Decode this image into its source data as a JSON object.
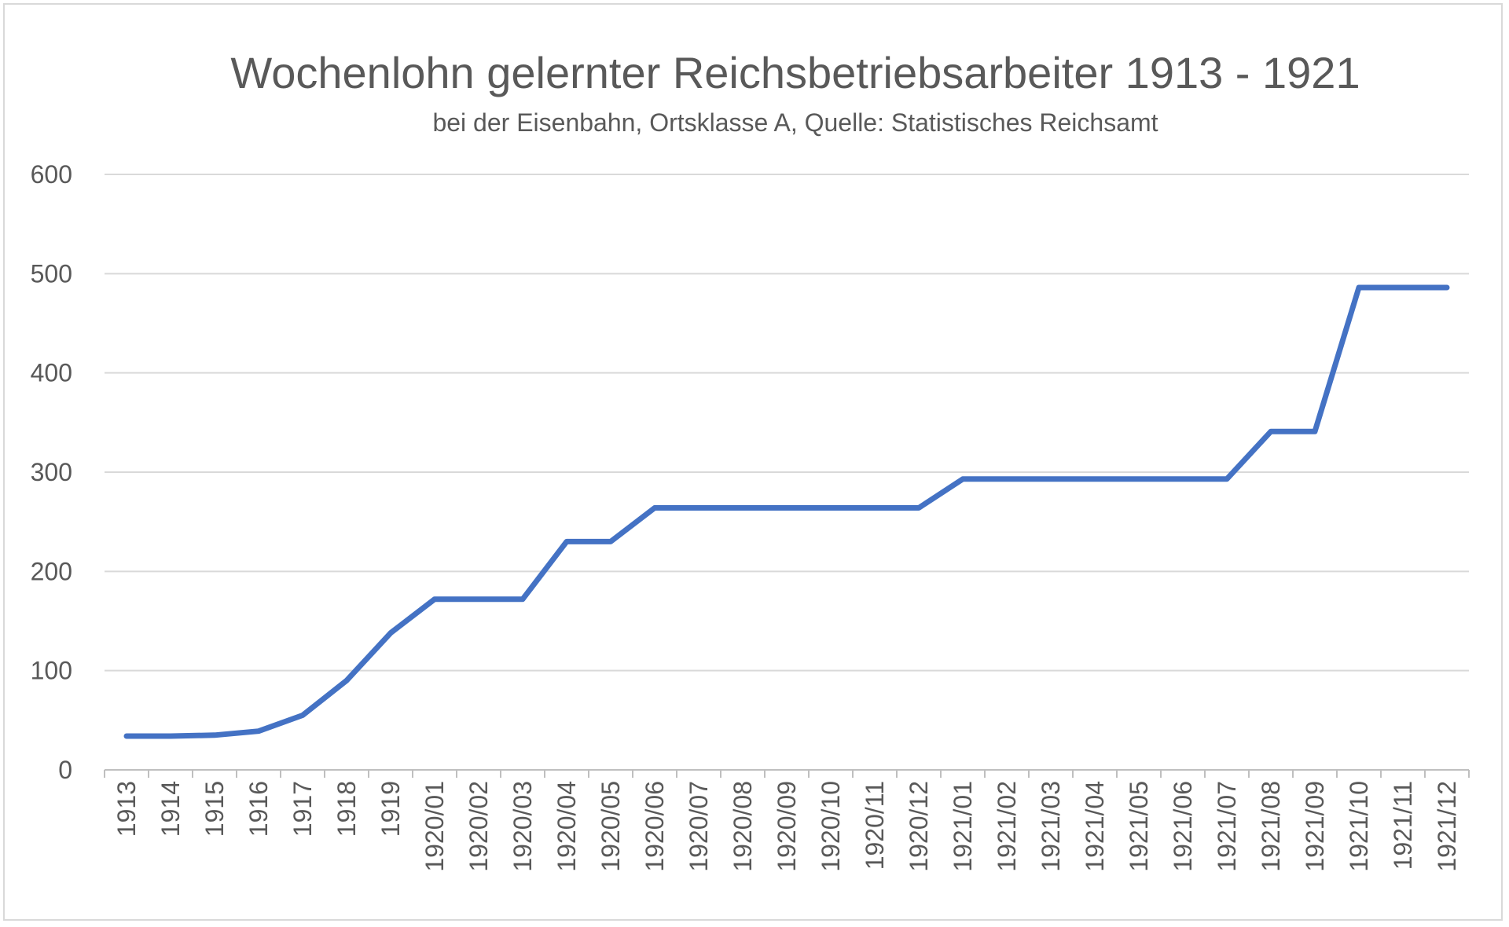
{
  "chart_data": {
    "type": "line",
    "title": "Wochenlohn gelernter Reichsbetriebsarbeiter 1913 - 1921",
    "subtitle": "bei der Eisenbahn, Ortsklasse A, Quelle: Statistisches Reichsamt",
    "xlabel": "",
    "ylabel": "",
    "ylim": [
      0,
      600
    ],
    "yticks": [
      "0",
      "100",
      "200",
      "300",
      "400",
      "500",
      "600"
    ],
    "grid": true,
    "legend": "none",
    "series_color": "#4472C4",
    "categories": [
      "1913",
      "1914",
      "1915",
      "1916",
      "1917",
      "1918",
      "1919",
      "1920/01",
      "1920/02",
      "1920/03",
      "1920/04",
      "1920/05",
      "1920/06",
      "1920/07",
      "1920/08",
      "1920/09",
      "1920/10",
      "1920/11",
      "1920/12",
      "1921/01",
      "1921/02",
      "1921/03",
      "1921/04",
      "1921/05",
      "1921/06",
      "1921/07",
      "1921/08",
      "1921/09",
      "1921/10",
      "1921/11",
      "1921/12"
    ],
    "series": [
      {
        "values": [
          34,
          34,
          35,
          39,
          55,
          90,
          138,
          172,
          172,
          172,
          230,
          230,
          264,
          264,
          264,
          264,
          264,
          264,
          264,
          293,
          293,
          293,
          293,
          293,
          293,
          293,
          341,
          341,
          486,
          486,
          486
        ]
      }
    ]
  }
}
